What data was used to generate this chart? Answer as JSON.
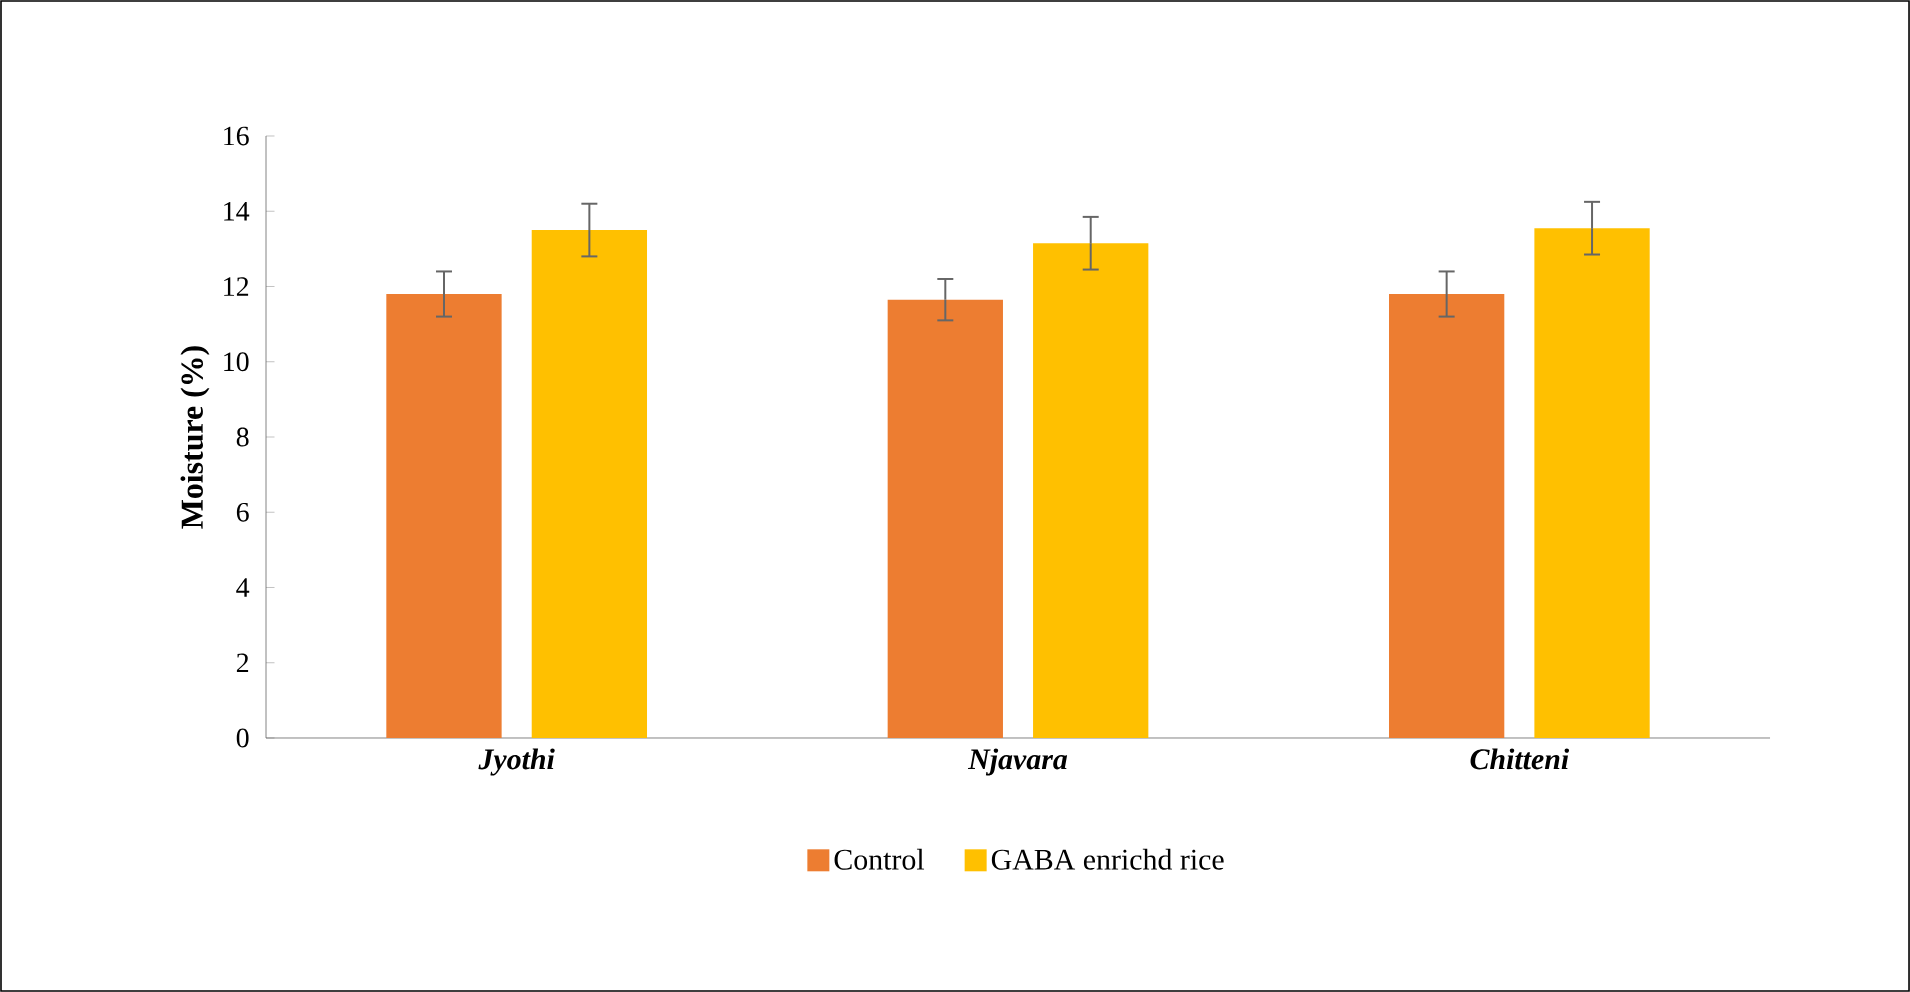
{
  "chart_data": {
    "type": "bar",
    "ylabel": "Moisture (%)",
    "categories": [
      "Jyothi",
      "Njavara",
      "Chitteni"
    ],
    "series": [
      {
        "name": "Control",
        "color": "#ed7d31",
        "values": [
          11.8,
          11.65,
          11.8
        ],
        "errors": [
          0.6,
          0.55,
          0.6
        ]
      },
      {
        "name": "GABA enrichd rice",
        "color": "#ffc000",
        "values": [
          13.5,
          13.15,
          13.55
        ],
        "errors": [
          0.7,
          0.7,
          0.7
        ]
      }
    ],
    "ylim": [
      0,
      16
    ],
    "yticks": [
      0,
      2,
      4,
      6,
      8,
      10,
      12,
      14,
      16
    ],
    "legend": "bottom"
  }
}
